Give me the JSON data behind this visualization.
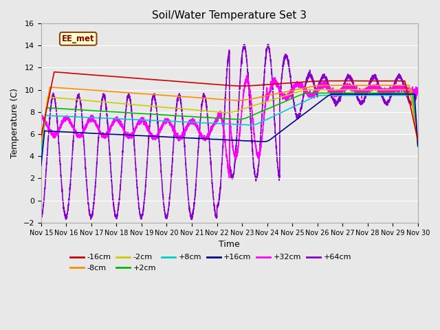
{
  "title": "Soil/Water Temperature Set 3",
  "xlabel": "Time",
  "ylabel": "Temperature (C)",
  "ylim": [
    -2,
    16
  ],
  "xlim": [
    0,
    15
  ],
  "bg_color": "#e8e8e8",
  "grid_color": "#ffffff",
  "annotation_label": "EE_met",
  "annotation_bg": "#ffffcc",
  "annotation_border": "#8b4513",
  "annotation_text_color": "#8b0000",
  "series": {
    "-16cm": {
      "color": "#cc0000",
      "lw": 1.2
    },
    "-8cm": {
      "color": "#ff8c00",
      "lw": 1.2
    },
    "-2cm": {
      "color": "#cccc00",
      "lw": 1.2
    },
    "+2cm": {
      "color": "#00bb00",
      "lw": 1.2
    },
    "+8cm": {
      "color": "#00cccc",
      "lw": 1.2
    },
    "+16cm": {
      "color": "#00008b",
      "lw": 1.2
    },
    "+32cm": {
      "color": "#ff00ff",
      "lw": 1.2
    },
    "+64cm": {
      "color": "#8800cc",
      "lw": 1.2
    }
  },
  "tick_labels": [
    "Nov 15",
    "Nov 16",
    "Nov 17",
    "Nov 18",
    "Nov 19",
    "Nov 20",
    "Nov 21",
    "Nov 22",
    "Nov 23",
    "Nov 24",
    "Nov 25",
    "Nov 26",
    "Nov 27",
    "Nov 28",
    "Nov 29",
    "Nov 30"
  ],
  "yticks": [
    -2,
    0,
    2,
    4,
    6,
    8,
    10,
    12,
    14,
    16
  ],
  "legend_order": [
    "-16cm",
    "-8cm",
    "-2cm",
    "+2cm",
    "+8cm",
    "+16cm",
    "+32cm",
    "+64cm"
  ]
}
